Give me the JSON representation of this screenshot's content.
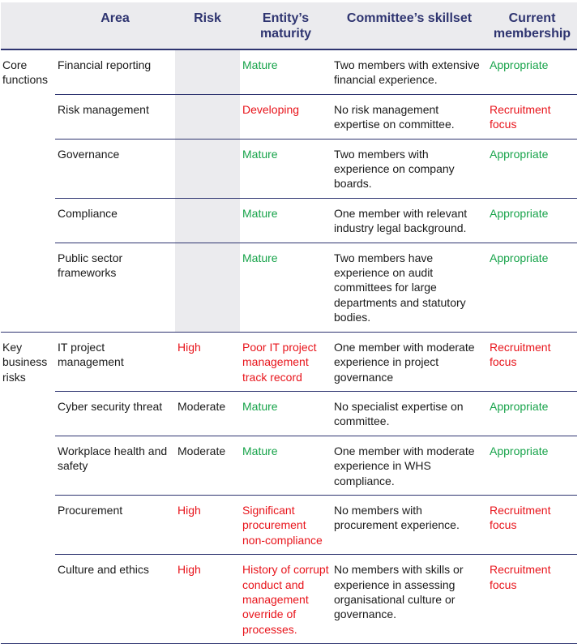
{
  "colors": {
    "header_bg": "#ebebee",
    "header_text": "#2e3470",
    "rule": "#2e3470",
    "positive": "#17a34a",
    "negative": "#e8141b",
    "neutral": "#1a1a1a"
  },
  "headers": [
    "",
    "Area",
    "Risk",
    "Entity’s maturity",
    "Committee’s skillset",
    "Current membership"
  ],
  "groups": [
    {
      "label": "Core functions",
      "rows": [
        {
          "area": "Financial reporting",
          "risk": "",
          "risk_tone": "neutral",
          "maturity": "Mature",
          "maturity_tone": "positive",
          "skillset": "Two members with extensive financial experience.",
          "membership": "Appropriate",
          "membership_tone": "positive"
        },
        {
          "area": "Risk management",
          "risk": "",
          "risk_tone": "neutral",
          "maturity": "Developing",
          "maturity_tone": "negative",
          "skillset": "No risk management expertise on committee.",
          "membership": "Recruitment focus",
          "membership_tone": "negative"
        },
        {
          "area": "Governance",
          "risk": "",
          "risk_tone": "neutral",
          "maturity": "Mature",
          "maturity_tone": "positive",
          "skillset": "Two members with experience on company boards.",
          "membership": "Appropriate",
          "membership_tone": "positive"
        },
        {
          "area": "Compliance",
          "risk": "",
          "risk_tone": "neutral",
          "maturity": "Mature",
          "maturity_tone": "positive",
          "skillset": "One member with relevant industry legal background.",
          "membership": "Appropriate",
          "membership_tone": "positive"
        },
        {
          "area": "Public sector frameworks",
          "risk": "",
          "risk_tone": "neutral",
          "maturity": "Mature",
          "maturity_tone": "positive",
          "skillset": "Two members have experience on audit committees for large departments and statutory bodies.",
          "membership": "Appropriate",
          "membership_tone": "positive"
        }
      ]
    },
    {
      "label": "Key business risks",
      "rows": [
        {
          "area": "IT project management",
          "risk": "High",
          "risk_tone": "negative",
          "maturity": "Poor IT project management track record",
          "maturity_tone": "negative",
          "skillset": "One member with moderate experience in project governance",
          "membership": "Recruitment focus",
          "membership_tone": "negative"
        },
        {
          "area": "Cyber security threat",
          "risk": "Moderate",
          "risk_tone": "neutral",
          "maturity": "Mature",
          "maturity_tone": "positive",
          "skillset": "No specialist expertise on committee.",
          "membership": "Appropriate",
          "membership_tone": "positive"
        },
        {
          "area": "Workplace health and safety",
          "risk": "Moderate",
          "risk_tone": "neutral",
          "maturity": "Mature",
          "maturity_tone": "positive",
          "skillset": "One member with moderate experience in WHS compliance.",
          "membership": "Appropriate",
          "membership_tone": "positive"
        },
        {
          "area": "Procurement",
          "risk": "High",
          "risk_tone": "negative",
          "maturity": "Significant procurement non-compliance",
          "maturity_tone": "negative",
          "skillset": "No members with procurement experience.",
          "membership": "Recruitment focus",
          "membership_tone": "negative"
        },
        {
          "area": "Culture and ethics",
          "risk": "High",
          "risk_tone": "negative",
          "maturity": "History of corrupt conduct and management override of processes.",
          "maturity_tone": "negative",
          "skillset": "No members with skills or experience in assessing organisational culture or governance.",
          "membership": "Recruitment focus",
          "membership_tone": "negative"
        }
      ]
    }
  ]
}
